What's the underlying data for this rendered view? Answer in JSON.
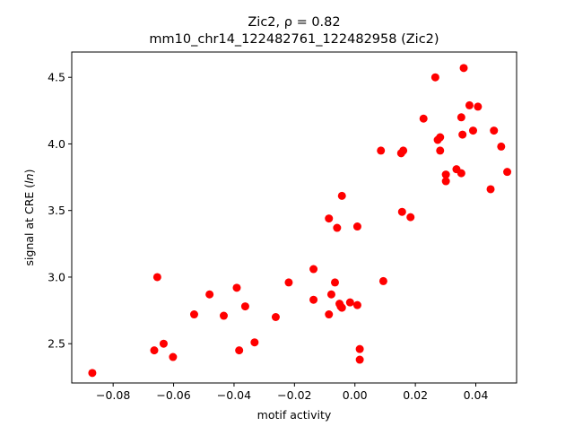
{
  "figure": {
    "title_line1": "Zic2, ρ = 0.82",
    "title_line2": "mm10_chr14_122482761_122482958 (Zic2)"
  },
  "chart_data": {
    "type": "scatter",
    "title": "Zic2, ρ = 0.82",
    "subtitle": "mm10_chr14_122482761_122482958 (Zic2)",
    "xlabel": "motif activity",
    "ylabel": "signal at CRE (ln)",
    "xlim": [
      -0.0937,
      0.0535
    ],
    "ylim": [
      2.205,
      4.69
    ],
    "xticks": [
      -0.08,
      -0.06,
      -0.04,
      -0.02,
      0.0,
      0.02,
      0.04
    ],
    "xtick_labels": [
      "−0.08",
      "−0.06",
      "−0.04",
      "−0.02",
      "0.00",
      "0.02",
      "0.04"
    ],
    "yticks": [
      2.5,
      3.0,
      3.5,
      4.0,
      4.5
    ],
    "ytick_labels": [
      "2.5",
      "3.0",
      "3.5",
      "4.0",
      "4.5"
    ],
    "grid": false,
    "legend": "none",
    "marker_color": "#ff0000",
    "points": [
      {
        "x": -0.0869,
        "y": 2.28
      },
      {
        "x": -0.0654,
        "y": 3.0
      },
      {
        "x": -0.0664,
        "y": 2.45
      },
      {
        "x": -0.0633,
        "y": 2.5
      },
      {
        "x": -0.0602,
        "y": 2.4
      },
      {
        "x": -0.0532,
        "y": 2.72
      },
      {
        "x": -0.0481,
        "y": 2.87
      },
      {
        "x": -0.0434,
        "y": 2.71
      },
      {
        "x": -0.0391,
        "y": 2.92
      },
      {
        "x": -0.0383,
        "y": 2.45
      },
      {
        "x": -0.0363,
        "y": 2.78
      },
      {
        "x": -0.0332,
        "y": 2.51
      },
      {
        "x": -0.0262,
        "y": 2.7
      },
      {
        "x": -0.0219,
        "y": 2.96
      },
      {
        "x": -0.0137,
        "y": 3.06
      },
      {
        "x": -0.0137,
        "y": 2.83
      },
      {
        "x": -0.0086,
        "y": 2.72
      },
      {
        "x": -0.0086,
        "y": 3.44
      },
      {
        "x": -0.0078,
        "y": 2.87
      },
      {
        "x": -0.0066,
        "y": 2.96
      },
      {
        "x": -0.0059,
        "y": 3.37
      },
      {
        "x": -0.0051,
        "y": 2.8
      },
      {
        "x": -0.0047,
        "y": 2.78
      },
      {
        "x": -0.0043,
        "y": 3.61
      },
      {
        "x": -0.0043,
        "y": 2.77
      },
      {
        "x": -0.0016,
        "y": 2.81
      },
      {
        "x": 0.0008,
        "y": 3.38
      },
      {
        "x": 0.0008,
        "y": 2.79
      },
      {
        "x": 0.0016,
        "y": 2.46
      },
      {
        "x": 0.0016,
        "y": 2.38
      },
      {
        "x": 0.0086,
        "y": 3.95
      },
      {
        "x": 0.0094,
        "y": 2.97
      },
      {
        "x": 0.0153,
        "y": 3.93
      },
      {
        "x": 0.016,
        "y": 3.95
      },
      {
        "x": 0.0156,
        "y": 3.49
      },
      {
        "x": 0.0184,
        "y": 3.45
      },
      {
        "x": 0.0227,
        "y": 4.19
      },
      {
        "x": 0.0266,
        "y": 4.5
      },
      {
        "x": 0.0274,
        "y": 4.03
      },
      {
        "x": 0.0282,
        "y": 4.05
      },
      {
        "x": 0.0282,
        "y": 3.95
      },
      {
        "x": 0.0301,
        "y": 3.77
      },
      {
        "x": 0.0301,
        "y": 3.72
      },
      {
        "x": 0.0336,
        "y": 3.81
      },
      {
        "x": 0.0352,
        "y": 3.78
      },
      {
        "x": 0.0352,
        "y": 4.2
      },
      {
        "x": 0.0356,
        "y": 4.07
      },
      {
        "x": 0.036,
        "y": 4.57
      },
      {
        "x": 0.0379,
        "y": 4.29
      },
      {
        "x": 0.0391,
        "y": 4.1
      },
      {
        "x": 0.0407,
        "y": 4.28
      },
      {
        "x": 0.0449,
        "y": 3.66
      },
      {
        "x": 0.046,
        "y": 4.1
      },
      {
        "x": 0.0484,
        "y": 3.98
      },
      {
        "x": 0.0504,
        "y": 3.79
      }
    ]
  }
}
